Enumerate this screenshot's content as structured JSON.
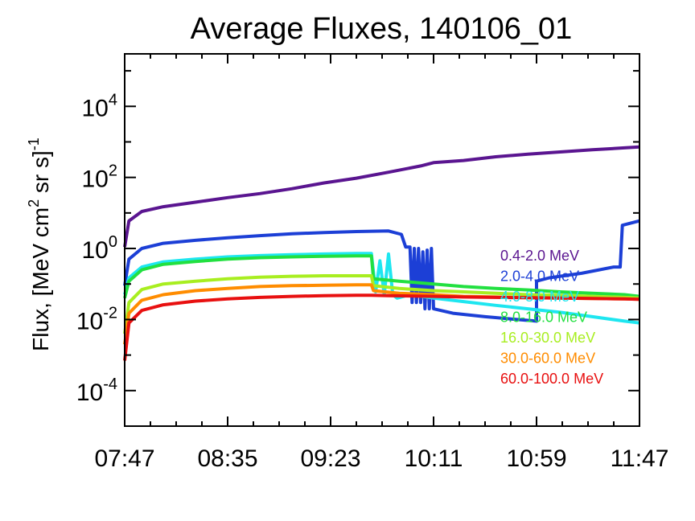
{
  "chart_data": {
    "type": "line",
    "title": "Average Fluxes, 140106_01",
    "ylabel": {
      "main": "Flux, [MeV cm",
      "sup1": "2",
      "mid": " sr s]",
      "sup2": "-1"
    },
    "xlabel": "",
    "x_tick_labels": [
      "07:47",
      "08:35",
      "09:23",
      "10:11",
      "10:59",
      "11:47"
    ],
    "xlim": [
      "07:47",
      "11:47"
    ],
    "y_scale": "log",
    "ylim": [
      1e-05,
      300000
    ],
    "y_ticks": [
      {
        "base": "10",
        "exp": "-4",
        "value": 0.0001
      },
      {
        "base": "10",
        "exp": "-2",
        "value": 0.01
      },
      {
        "base": "10",
        "exp": "0",
        "value": 1
      },
      {
        "base": "10",
        "exp": "2",
        "value": 100
      },
      {
        "base": "10",
        "exp": "4",
        "value": 10000
      }
    ],
    "grid": false,
    "legend_position": "right",
    "series": [
      {
        "name": "0.4-2.0 MeV",
        "color": "#5a1590",
        "x": [
          "07:47",
          "07:49",
          "07:55",
          "08:05",
          "08:20",
          "08:35",
          "08:50",
          "09:05",
          "09:20",
          "09:35",
          "09:50",
          "10:05",
          "10:11",
          "10:25",
          "10:40",
          "10:55",
          "11:10",
          "11:25",
          "11:40",
          "11:47"
        ],
        "y": [
          1.1,
          6,
          11,
          15,
          20,
          27,
          35,
          48,
          70,
          95,
          140,
          210,
          260,
          300,
          380,
          450,
          520,
          600,
          680,
          720
        ]
      },
      {
        "name": "2.0-4.0 MeV",
        "color": "#1c3fd6",
        "x": [
          "07:47",
          "07:49",
          "07:55",
          "08:05",
          "08:20",
          "08:35",
          "08:50",
          "09:05",
          "09:20",
          "09:35",
          "09:50",
          "09:56",
          "09:58",
          "10:00",
          "10:01",
          "10:02",
          "10:03",
          "10:04",
          "10:05",
          "10:06",
          "10:07",
          "10:08",
          "10:09",
          "10:10",
          "10:11",
          "10:20",
          "10:35",
          "10:50",
          "10:59",
          "10:59",
          "11:05",
          "11:20",
          "11:35",
          "11:38",
          "11:39",
          "11:47"
        ],
        "y": [
          0.09,
          0.5,
          1.0,
          1.4,
          1.7,
          2.0,
          2.3,
          2.6,
          2.8,
          3.0,
          3.1,
          2.5,
          1.1,
          1.1,
          0.03,
          1.0,
          0.03,
          1.0,
          0.03,
          0.8,
          0.02,
          0.9,
          0.02,
          1.0,
          0.02,
          0.015,
          0.012,
          0.01,
          0.009,
          0.12,
          0.15,
          0.2,
          0.3,
          0.3,
          4.5,
          6
        ]
      },
      {
        "name": "4.0-8.0 MeV",
        "color": "#1ee6f0",
        "x": [
          "07:47",
          "07:49",
          "07:55",
          "08:05",
          "08:20",
          "08:35",
          "08:50",
          "09:05",
          "09:20",
          "09:35",
          "09:42",
          "09:44",
          "09:46",
          "09:48",
          "09:50",
          "09:52",
          "09:54",
          "10:00",
          "10:11",
          "10:25",
          "10:40",
          "10:55",
          "11:10",
          "11:25",
          "11:40",
          "11:47"
        ],
        "y": [
          0.05,
          0.15,
          0.3,
          0.42,
          0.5,
          0.58,
          0.63,
          0.67,
          0.7,
          0.72,
          0.72,
          0.06,
          0.45,
          0.05,
          0.7,
          0.05,
          0.04,
          0.05,
          0.04,
          0.032,
          0.025,
          0.02,
          0.016,
          0.012,
          0.009,
          0.008
        ]
      },
      {
        "name": "8.0-16.0 MeV",
        "color": "#22e040",
        "x": [
          "07:47",
          "07:49",
          "07:55",
          "08:05",
          "08:20",
          "08:35",
          "08:50",
          "09:05",
          "09:20",
          "09:35",
          "09:42",
          "09:43",
          "09:55",
          "10:11",
          "10:25",
          "10:40",
          "10:55",
          "11:10",
          "11:25",
          "11:40",
          "11:47"
        ],
        "y": [
          0.04,
          0.12,
          0.25,
          0.36,
          0.43,
          0.5,
          0.55,
          0.58,
          0.6,
          0.62,
          0.62,
          0.14,
          0.12,
          0.1,
          0.085,
          0.075,
          0.068,
          0.06,
          0.055,
          0.05,
          0.045
        ]
      },
      {
        "name": "16.0-30.0 MeV",
        "color": "#a8ee20",
        "x": [
          "07:47",
          "07:49",
          "07:55",
          "08:05",
          "08:20",
          "08:35",
          "08:50",
          "09:05",
          "09:20",
          "09:35",
          "09:42",
          "09:43",
          "09:55",
          "10:11",
          "10:25",
          "10:40",
          "10:55",
          "11:10",
          "11:25",
          "11:40",
          "11:47"
        ],
        "y": [
          0.004,
          0.03,
          0.07,
          0.1,
          0.12,
          0.14,
          0.155,
          0.165,
          0.17,
          0.17,
          0.17,
          0.09,
          0.075,
          0.065,
          0.06,
          0.055,
          0.05,
          0.048,
          0.045,
          0.042,
          0.04
        ]
      },
      {
        "name": "30.0-60.0 MeV",
        "color": "#ff8c00",
        "x": [
          "07:47",
          "07:49",
          "07:55",
          "08:05",
          "08:20",
          "08:35",
          "08:50",
          "09:05",
          "09:20",
          "09:35",
          "09:42",
          "09:43",
          "09:55",
          "10:11",
          "10:25",
          "10:40",
          "10:55",
          "11:10",
          "11:25",
          "11:40",
          "11:47"
        ],
        "y": [
          0.002,
          0.015,
          0.035,
          0.05,
          0.065,
          0.075,
          0.085,
          0.09,
          0.092,
          0.095,
          0.095,
          0.065,
          0.055,
          0.05,
          0.045,
          0.043,
          0.041,
          0.04,
          0.039,
          0.038,
          0.037
        ]
      },
      {
        "name": "60.0-100.0 MeV",
        "color": "#e81010",
        "x": [
          "07:47",
          "07:49",
          "07:55",
          "08:05",
          "08:20",
          "08:35",
          "08:50",
          "09:05",
          "09:20",
          "09:35",
          "09:42",
          "09:50",
          "10:00",
          "10:11",
          "10:25",
          "10:40",
          "10:55",
          "11:10",
          "11:25",
          "11:40",
          "11:47"
        ],
        "y": [
          0.0007,
          0.008,
          0.018,
          0.026,
          0.033,
          0.038,
          0.042,
          0.045,
          0.047,
          0.048,
          0.048,
          0.047,
          0.046,
          0.045,
          0.043,
          0.042,
          0.041,
          0.04,
          0.039,
          0.038,
          0.037
        ]
      }
    ]
  }
}
